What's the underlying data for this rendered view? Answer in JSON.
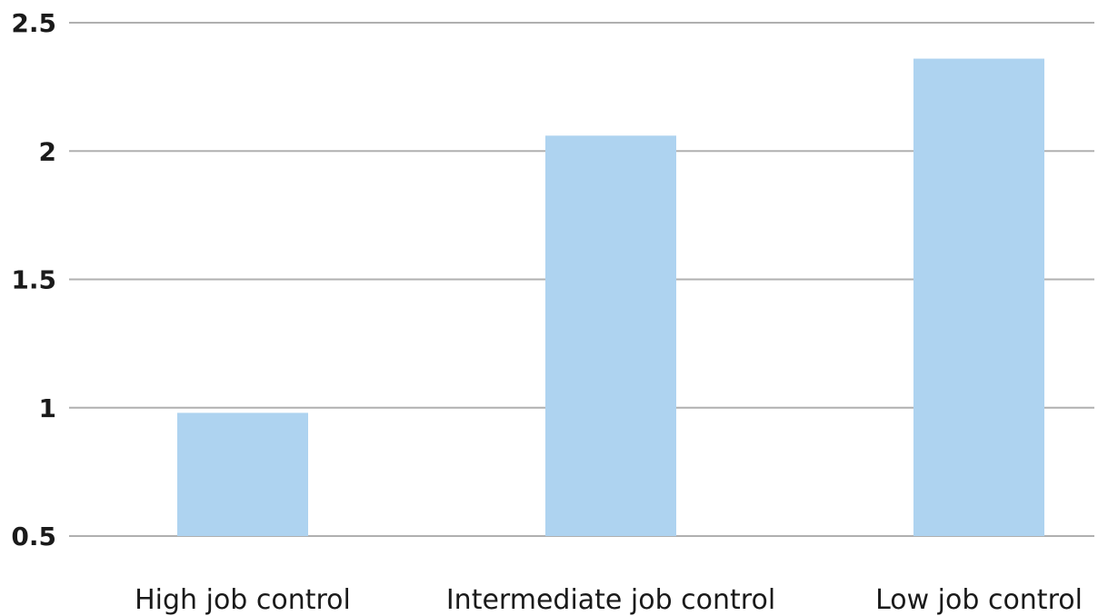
{
  "chart_data": {
    "type": "bar",
    "categories": [
      "High job control",
      "Intermediate job control",
      "Low job control"
    ],
    "values": [
      0.98,
      2.06,
      2.36
    ],
    "title": "",
    "xlabel": "",
    "ylabel": "",
    "ylim": [
      0.5,
      2.5
    ],
    "yticks": [
      0.5,
      1,
      1.5,
      2,
      2.5
    ],
    "ytick_labels": [
      "0.5",
      "1",
      "1.5",
      "2",
      "2.5"
    ],
    "grid": "horizontal",
    "legend": "none",
    "bar_color": "#aed3f0",
    "grid_color": "#b0b0b0",
    "text_color": "#1a1a1a"
  }
}
